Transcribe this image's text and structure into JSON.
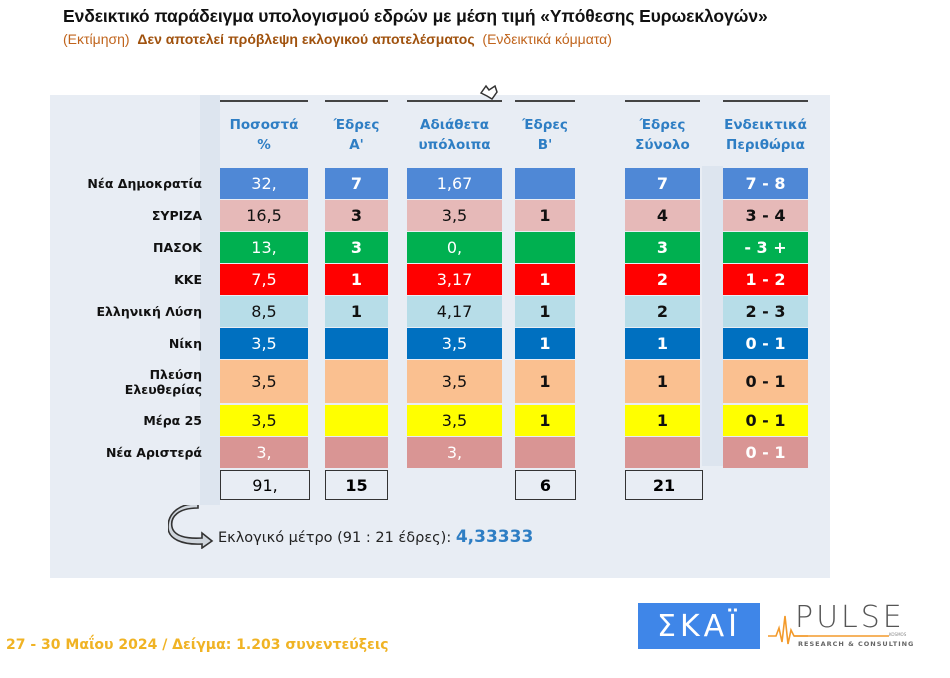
{
  "header": {
    "title": "Ενδεικτικό παράδειγμα υπολογισμού εδρών με μέση τιμή «Υπόθεσης Ευρωεκλογών»",
    "subtitle_prefix": "(Εκτίμηση)",
    "subtitle_emphasis": "Δεν αποτελεί πρόβλεψη εκλογικού αποτελέσματος",
    "subtitle_suffix": "(Ενδεικτικά κόμματα)"
  },
  "table": {
    "columns": [
      {
        "line1": "Ποσοστά",
        "line2": "%"
      },
      {
        "line1": "Έδρες",
        "line2": "Α'"
      },
      {
        "line1": "Αδιάθετα",
        "line2": "υπόλοιπα"
      },
      {
        "line1": "Έδρες",
        "line2": "Β'"
      },
      {
        "line1": "Έδρες",
        "line2": "Σύνολο"
      },
      {
        "line1": "Ενδεικτικά",
        "line2": "Περιθώρια"
      }
    ],
    "rows": [
      {
        "party": "Νέα Δημοκρατία",
        "pct": "32,",
        "seats_a": "7",
        "remainder": "1,67",
        "seats_b": "",
        "total": "7",
        "range": "7 - 8",
        "color": "#4f88d6",
        "text": "#ffffff"
      },
      {
        "party": "ΣΥΡΙΖΑ",
        "pct": "16,5",
        "seats_a": "3",
        "remainder": "3,5",
        "seats_b": "1",
        "total": "4",
        "range": "3 - 4",
        "color": "#e6b9b8",
        "text": "#111111"
      },
      {
        "party": "ΠΑΣΟΚ",
        "pct": "13,",
        "seats_a": "3",
        "remainder": "0,",
        "seats_b": "",
        "total": "3",
        "range": "- 3 +",
        "color": "#00b050",
        "text": "#ffffff"
      },
      {
        "party": "ΚΚΕ",
        "pct": "7,5",
        "seats_a": "1",
        "remainder": "3,17",
        "seats_b": "1",
        "total": "2",
        "range": "1 - 2",
        "color": "#ff0000",
        "text": "#ffffff"
      },
      {
        "party": "Ελληνική Λύση",
        "pct": "8,5",
        "seats_a": "1",
        "remainder": "4,17",
        "seats_b": "1",
        "total": "2",
        "range": "2 - 3",
        "color": "#b7dde8",
        "text": "#111111"
      },
      {
        "party": "Νίκη",
        "pct": "3,5",
        "seats_a": "",
        "remainder": "3,5",
        "seats_b": "1",
        "total": "1",
        "range": "0 - 1",
        "color": "#0070c0",
        "text": "#ffffff"
      },
      {
        "party_line1": "Πλεύση",
        "party_line2": "Ελευθερίας",
        "pct": "3,5",
        "seats_a": "",
        "remainder": "3,5",
        "seats_b": "1",
        "total": "1",
        "range": "0 - 1",
        "color": "#fac090",
        "text": "#111111"
      },
      {
        "party": "Μέρα 25",
        "pct": "3,5",
        "seats_a": "",
        "remainder": "3,5",
        "seats_b": "1",
        "total": "1",
        "range": "0 - 1",
        "color": "#ffff00",
        "text": "#111111"
      },
      {
        "party": "Νέα Αριστερά",
        "pct": "3,",
        "seats_a": "",
        "remainder": "3,",
        "seats_b": "",
        "total": "",
        "range": "0 - 1",
        "color": "#d99594",
        "text": "#ffffff"
      }
    ],
    "totals": {
      "pct": "91,",
      "seats_a": "15",
      "seats_b": "6",
      "total": "21"
    }
  },
  "quota": {
    "label": "Εκλογικό μέτρο (91 : 21 έδρες):",
    "value": "4,33333"
  },
  "footer": {
    "text": "27 - 30  Μαΐου 2024  /  Δείγμα:  1.203 συνεντεύξεις"
  },
  "logos": {
    "skai": "ΣΚΑΪ",
    "pulse": "PULSE",
    "pulse_sub": "RESEARCH & CONSULTING",
    "pulse_tag": "KOSMOS"
  }
}
